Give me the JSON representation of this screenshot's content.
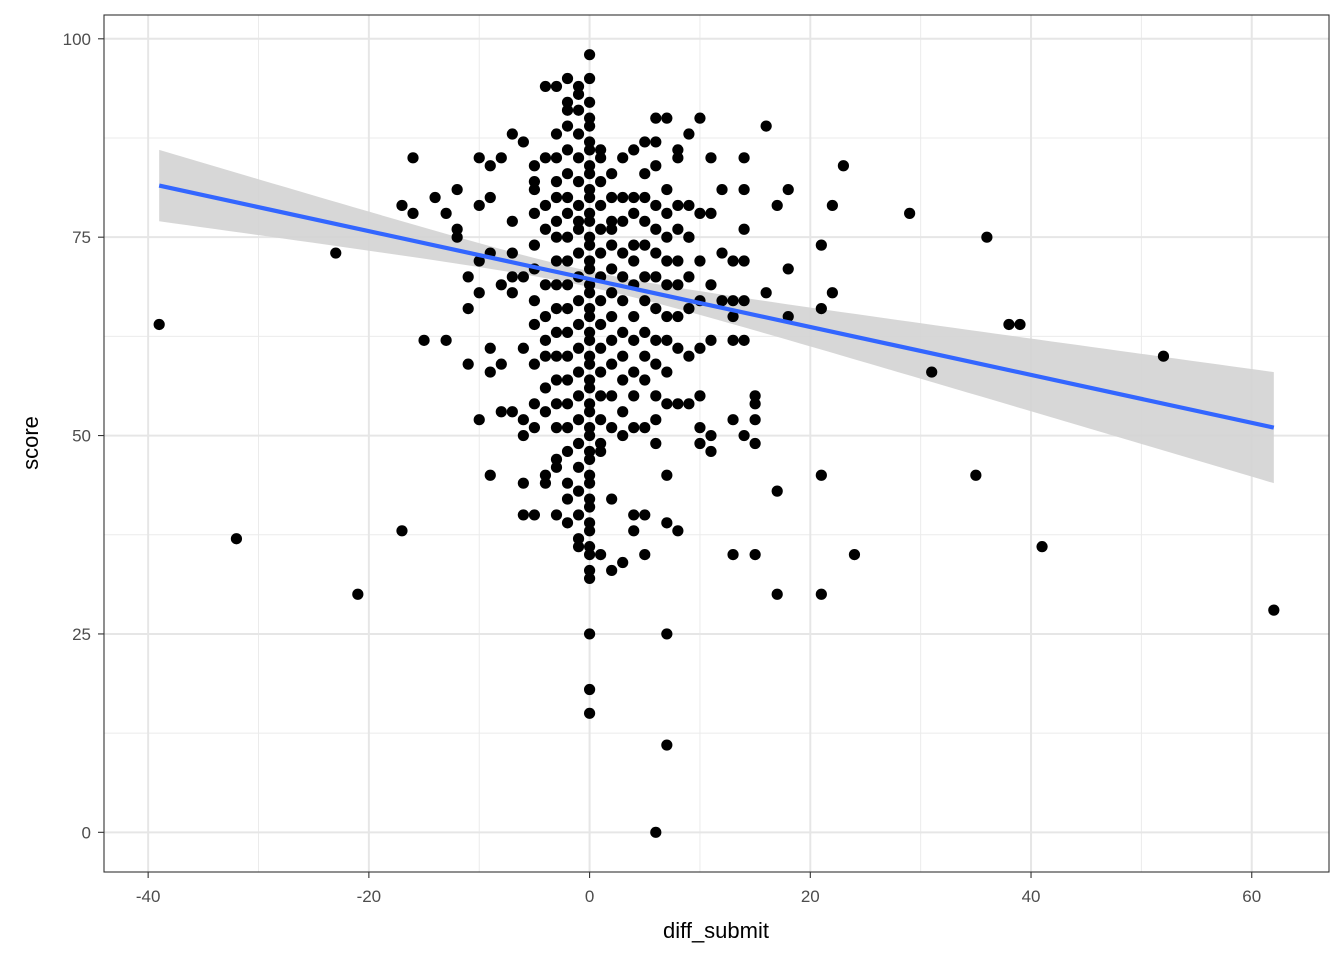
{
  "chart_data": {
    "type": "scatter",
    "title": "",
    "xlabel": "diff_submit",
    "ylabel": "score",
    "xlim": [
      -44.0,
      67.0
    ],
    "ylim": [
      -5.0,
      103.0
    ],
    "x_ticks": [
      -40,
      -20,
      0,
      20,
      40,
      60
    ],
    "y_ticks": [
      0,
      25,
      50,
      75,
      100
    ],
    "x_tick_labels": [
      "-40",
      "-20",
      "0",
      "20",
      "40",
      "60"
    ],
    "y_tick_labels": [
      "0",
      "25",
      "50",
      "75",
      "100"
    ],
    "grid": true,
    "point_color": "#000000",
    "smooth": {
      "method": "lm",
      "color": "#3366ff",
      "band_color": "#d3d3d3",
      "x_range": [
        -39,
        62
      ],
      "fit_start": 81.5,
      "fit_end": 51.0,
      "ci_start": [
        77.0,
        86.0
      ],
      "ci_end": [
        44.0,
        58.0
      ],
      "ci_min_at": 0,
      "ci_half_width_min": 1.0
    },
    "points": [
      [
        -39,
        64
      ],
      [
        -32,
        37
      ],
      [
        -23,
        73
      ],
      [
        -21,
        30
      ],
      [
        -17,
        79
      ],
      [
        -17,
        38
      ],
      [
        -16,
        78
      ],
      [
        -16,
        85
      ],
      [
        -15,
        62
      ],
      [
        -14,
        80
      ],
      [
        -13,
        62
      ],
      [
        -13,
        78
      ],
      [
        -12,
        76
      ],
      [
        -12,
        75
      ],
      [
        -12,
        81
      ],
      [
        -11,
        66
      ],
      [
        -11,
        59
      ],
      [
        -11,
        70
      ],
      [
        -10,
        72
      ],
      [
        -10,
        68
      ],
      [
        -10,
        52
      ],
      [
        -10,
        79
      ],
      [
        -10,
        85
      ],
      [
        -9,
        61
      ],
      [
        -9,
        58
      ],
      [
        -9,
        45
      ],
      [
        -9,
        73
      ],
      [
        -9,
        80
      ],
      [
        -9,
        84
      ],
      [
        -8,
        69
      ],
      [
        -8,
        59
      ],
      [
        -8,
        53
      ],
      [
        -8,
        85
      ],
      [
        -7,
        77
      ],
      [
        -7,
        73
      ],
      [
        -7,
        70
      ],
      [
        -7,
        68
      ],
      [
        -7,
        53
      ],
      [
        -7,
        88
      ],
      [
        -6,
        70
      ],
      [
        -6,
        61
      ],
      [
        -6,
        52
      ],
      [
        -6,
        50
      ],
      [
        -6,
        44
      ],
      [
        -6,
        40
      ],
      [
        -6,
        87
      ],
      [
        -5,
        81
      ],
      [
        -5,
        78
      ],
      [
        -5,
        74
      ],
      [
        -5,
        71
      ],
      [
        -5,
        67
      ],
      [
        -5,
        64
      ],
      [
        -5,
        59
      ],
      [
        -5,
        54
      ],
      [
        -5,
        51
      ],
      [
        -5,
        40
      ],
      [
        -5,
        84
      ],
      [
        -5,
        82
      ],
      [
        -4,
        62
      ],
      [
        -4,
        69
      ],
      [
        -4,
        65
      ],
      [
        -4,
        60
      ],
      [
        -4,
        56
      ],
      [
        -4,
        53
      ],
      [
        -4,
        45
      ],
      [
        -4,
        44
      ],
      [
        -4,
        85
      ],
      [
        -4,
        94
      ],
      [
        -4,
        79
      ],
      [
        -4,
        76
      ],
      [
        -3,
        94
      ],
      [
        -3,
        88
      ],
      [
        -3,
        85
      ],
      [
        -3,
        82
      ],
      [
        -3,
        80
      ],
      [
        -3,
        77
      ],
      [
        -3,
        75
      ],
      [
        -3,
        72
      ],
      [
        -3,
        69
      ],
      [
        -3,
        66
      ],
      [
        -3,
        63
      ],
      [
        -3,
        60
      ],
      [
        -3,
        57
      ],
      [
        -3,
        54
      ],
      [
        -3,
        51
      ],
      [
        -3,
        47
      ],
      [
        -3,
        40
      ],
      [
        -3,
        46
      ],
      [
        -2,
        95
      ],
      [
        -2,
        92
      ],
      [
        -2,
        89
      ],
      [
        -2,
        86
      ],
      [
        -2,
        83
      ],
      [
        -2,
        80
      ],
      [
        -2,
        78
      ],
      [
        -2,
        75
      ],
      [
        -2,
        72
      ],
      [
        -2,
        69
      ],
      [
        -2,
        66
      ],
      [
        -2,
        63
      ],
      [
        -2,
        60
      ],
      [
        -2,
        57
      ],
      [
        -2,
        54
      ],
      [
        -2,
        51
      ],
      [
        -2,
        48
      ],
      [
        -2,
        44
      ],
      [
        -2,
        42
      ],
      [
        -2,
        39
      ],
      [
        -2,
        91
      ],
      [
        -1,
        94
      ],
      [
        -1,
        91
      ],
      [
        -1,
        88
      ],
      [
        -1,
        85
      ],
      [
        -1,
        82
      ],
      [
        -1,
        79
      ],
      [
        -1,
        76
      ],
      [
        -1,
        73
      ],
      [
        -1,
        70
      ],
      [
        -1,
        67
      ],
      [
        -1,
        64
      ],
      [
        -1,
        61
      ],
      [
        -1,
        58
      ],
      [
        -1,
        55
      ],
      [
        -1,
        52
      ],
      [
        -1,
        49
      ],
      [
        -1,
        46
      ],
      [
        -1,
        43
      ],
      [
        -1,
        40
      ],
      [
        -1,
        37
      ],
      [
        -1,
        36
      ],
      [
        -1,
        93
      ],
      [
        -1,
        77
      ],
      [
        0,
        98
      ],
      [
        0,
        95
      ],
      [
        0,
        92
      ],
      [
        0,
        89
      ],
      [
        0,
        86
      ],
      [
        0,
        83
      ],
      [
        0,
        80
      ],
      [
        0,
        77
      ],
      [
        0,
        74
      ],
      [
        0,
        71
      ],
      [
        0,
        68
      ],
      [
        0,
        65
      ],
      [
        0,
        62
      ],
      [
        0,
        59
      ],
      [
        0,
        56
      ],
      [
        0,
        53
      ],
      [
        0,
        50
      ],
      [
        0,
        47
      ],
      [
        0,
        44
      ],
      [
        0,
        41
      ],
      [
        0,
        38
      ],
      [
        0,
        35
      ],
      [
        0,
        32
      ],
      [
        0,
        25
      ],
      [
        0,
        18
      ],
      [
        0,
        15
      ],
      [
        0,
        90
      ],
      [
        0,
        87
      ],
      [
        0,
        84
      ],
      [
        0,
        81
      ],
      [
        0,
        78
      ],
      [
        0,
        75
      ],
      [
        0,
        72
      ],
      [
        0,
        69
      ],
      [
        0,
        66
      ],
      [
        0,
        63
      ],
      [
        0,
        60
      ],
      [
        0,
        57
      ],
      [
        0,
        54
      ],
      [
        0,
        51
      ],
      [
        0,
        48
      ],
      [
        0,
        45
      ],
      [
        0,
        42
      ],
      [
        0,
        39
      ],
      [
        0,
        36
      ],
      [
        0,
        33
      ],
      [
        1,
        85
      ],
      [
        1,
        82
      ],
      [
        1,
        79
      ],
      [
        1,
        76
      ],
      [
        1,
        73
      ],
      [
        1,
        70
      ],
      [
        1,
        67
      ],
      [
        1,
        64
      ],
      [
        1,
        61
      ],
      [
        1,
        58
      ],
      [
        1,
        55
      ],
      [
        1,
        52
      ],
      [
        1,
        49
      ],
      [
        1,
        35
      ],
      [
        1,
        86
      ],
      [
        1,
        48
      ],
      [
        2,
        83
      ],
      [
        2,
        80
      ],
      [
        2,
        77
      ],
      [
        2,
        74
      ],
      [
        2,
        71
      ],
      [
        2,
        68
      ],
      [
        2,
        65
      ],
      [
        2,
        62
      ],
      [
        2,
        59
      ],
      [
        2,
        55
      ],
      [
        2,
        51
      ],
      [
        2,
        42
      ],
      [
        2,
        33
      ],
      [
        2,
        76
      ],
      [
        3,
        85
      ],
      [
        3,
        80
      ],
      [
        3,
        77
      ],
      [
        3,
        73
      ],
      [
        3,
        70
      ],
      [
        3,
        67
      ],
      [
        3,
        63
      ],
      [
        3,
        60
      ],
      [
        3,
        57
      ],
      [
        3,
        53
      ],
      [
        3,
        50
      ],
      [
        3,
        34
      ],
      [
        4,
        86
      ],
      [
        4,
        80
      ],
      [
        4,
        78
      ],
      [
        4,
        74
      ],
      [
        4,
        72
      ],
      [
        4,
        69
      ],
      [
        4,
        65
      ],
      [
        4,
        62
      ],
      [
        4,
        58
      ],
      [
        4,
        55
      ],
      [
        4,
        51
      ],
      [
        4,
        40
      ],
      [
        4,
        38
      ],
      [
        5,
        87
      ],
      [
        5,
        83
      ],
      [
        5,
        80
      ],
      [
        5,
        77
      ],
      [
        5,
        74
      ],
      [
        5,
        70
      ],
      [
        5,
        67
      ],
      [
        5,
        63
      ],
      [
        5,
        60
      ],
      [
        5,
        57
      ],
      [
        5,
        51
      ],
      [
        5,
        40
      ],
      [
        5,
        35
      ],
      [
        6,
        90
      ],
      [
        6,
        87
      ],
      [
        6,
        84
      ],
      [
        6,
        79
      ],
      [
        6,
        76
      ],
      [
        6,
        73
      ],
      [
        6,
        70
      ],
      [
        6,
        66
      ],
      [
        6,
        62
      ],
      [
        6,
        59
      ],
      [
        6,
        55
      ],
      [
        6,
        52
      ],
      [
        6,
        49
      ],
      [
        6,
        0
      ],
      [
        7,
        90
      ],
      [
        7,
        81
      ],
      [
        7,
        78
      ],
      [
        7,
        75
      ],
      [
        7,
        72
      ],
      [
        7,
        69
      ],
      [
        7,
        65
      ],
      [
        7,
        62
      ],
      [
        7,
        58
      ],
      [
        7,
        54
      ],
      [
        7,
        45
      ],
      [
        7,
        39
      ],
      [
        7,
        25
      ],
      [
        7,
        11
      ],
      [
        8,
        86
      ],
      [
        8,
        79
      ],
      [
        8,
        76
      ],
      [
        8,
        72
      ],
      [
        8,
        69
      ],
      [
        8,
        65
      ],
      [
        8,
        61
      ],
      [
        8,
        54
      ],
      [
        8,
        38
      ],
      [
        8,
        85
      ],
      [
        9,
        88
      ],
      [
        9,
        79
      ],
      [
        9,
        75
      ],
      [
        9,
        70
      ],
      [
        9,
        66
      ],
      [
        9,
        60
      ],
      [
        9,
        54
      ],
      [
        9,
        75
      ],
      [
        10,
        90
      ],
      [
        10,
        78
      ],
      [
        10,
        72
      ],
      [
        10,
        67
      ],
      [
        10,
        61
      ],
      [
        10,
        55
      ],
      [
        10,
        51
      ],
      [
        10,
        49
      ],
      [
        11,
        85
      ],
      [
        11,
        78
      ],
      [
        11,
        69
      ],
      [
        11,
        62
      ],
      [
        11,
        50
      ],
      [
        11,
        48
      ],
      [
        12,
        81
      ],
      [
        12,
        73
      ],
      [
        12,
        67
      ],
      [
        13,
        72
      ],
      [
        13,
        67
      ],
      [
        13,
        65
      ],
      [
        13,
        62
      ],
      [
        13,
        52
      ],
      [
        13,
        35
      ],
      [
        14,
        85
      ],
      [
        14,
        81
      ],
      [
        14,
        76
      ],
      [
        14,
        72
      ],
      [
        14,
        67
      ],
      [
        14,
        62
      ],
      [
        14,
        50
      ],
      [
        15,
        55
      ],
      [
        15,
        54
      ],
      [
        15,
        52
      ],
      [
        15,
        49
      ],
      [
        15,
        35
      ],
      [
        16,
        89
      ],
      [
        16,
        68
      ],
      [
        17,
        79
      ],
      [
        17,
        43
      ],
      [
        17,
        30
      ],
      [
        18,
        81
      ],
      [
        18,
        71
      ],
      [
        18,
        65
      ],
      [
        21,
        74
      ],
      [
        21,
        66
      ],
      [
        21,
        45
      ],
      [
        21,
        30
      ],
      [
        22,
        79
      ],
      [
        22,
        68
      ],
      [
        23,
        84
      ],
      [
        24,
        35
      ],
      [
        29,
        78
      ],
      [
        31,
        58
      ],
      [
        35,
        45
      ],
      [
        36,
        75
      ],
      [
        38,
        64
      ],
      [
        39,
        64
      ],
      [
        41,
        36
      ],
      [
        52,
        60
      ],
      [
        62,
        28
      ]
    ]
  }
}
